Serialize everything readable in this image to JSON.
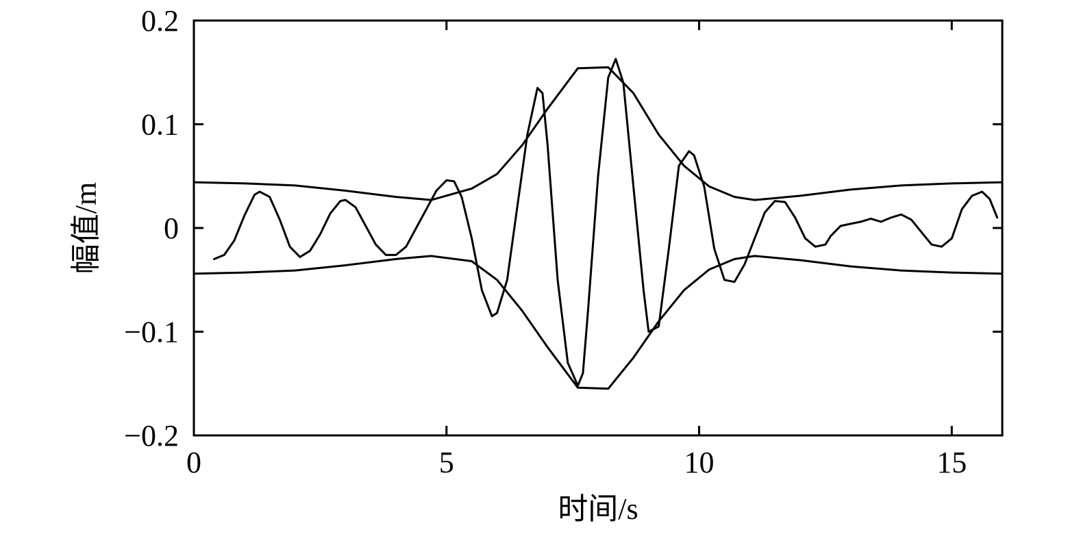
{
  "chart_data": {
    "type": "line",
    "title": "",
    "xlabel": "时间/s",
    "ylabel": "幅值/m",
    "xlim": [
      0,
      16
    ],
    "ylim": [
      -0.2,
      0.2
    ],
    "x_ticks": [
      0,
      5,
      10,
      15
    ],
    "x_tick_labels": [
      "0",
      "5",
      "10",
      "15"
    ],
    "y_ticks": [
      0.2,
      0.1,
      0,
      -0.1,
      -0.2
    ],
    "y_tick_labels": [
      "0.2",
      "0.1",
      "0",
      "−0.1",
      "−0.2"
    ],
    "grid": false,
    "legend": "none",
    "line_color": "#000000",
    "series": [
      {
        "x": [
          0.4,
          0.6,
          0.8,
          1.0,
          1.2,
          1.3,
          1.5,
          1.7,
          1.9,
          2.1,
          2.3,
          2.5,
          2.7,
          2.9,
          3.0,
          3.2,
          3.4,
          3.6,
          3.8,
          4.0,
          4.2,
          4.4,
          4.6,
          4.8,
          5.0,
          5.15,
          5.3,
          5.5,
          5.7,
          5.9,
          6.0,
          6.2,
          6.4,
          6.6,
          6.8,
          6.9,
          7.0,
          7.2,
          7.4,
          7.6,
          7.7,
          7.8,
          8.0,
          8.2,
          8.35,
          8.5,
          8.7,
          8.9,
          9.0,
          9.2,
          9.4,
          9.6,
          9.8,
          9.9,
          10.1,
          10.3,
          10.5,
          10.7,
          10.9,
          11.1,
          11.3,
          11.5,
          11.7,
          11.9,
          12.1,
          12.3,
          12.5,
          12.6,
          12.8,
          13.0,
          13.2,
          13.4,
          13.6,
          13.8,
          14.0,
          14.2,
          14.4,
          14.6,
          14.8,
          15.0,
          15.2,
          15.4,
          15.6,
          15.75,
          15.9
        ],
        "values": [
          -0.03,
          -0.026,
          -0.012,
          0.012,
          0.032,
          0.035,
          0.03,
          0.008,
          -0.018,
          -0.028,
          -0.022,
          -0.006,
          0.014,
          0.026,
          0.027,
          0.02,
          0.002,
          -0.016,
          -0.026,
          -0.026,
          -0.018,
          0.0,
          0.018,
          0.036,
          0.046,
          0.045,
          0.03,
          -0.01,
          -0.06,
          -0.085,
          -0.082,
          -0.05,
          0.02,
          0.09,
          0.135,
          0.13,
          0.08,
          -0.05,
          -0.13,
          -0.152,
          -0.14,
          -0.08,
          0.05,
          0.145,
          0.163,
          0.14,
          0.04,
          -0.06,
          -0.1,
          -0.095,
          -0.02,
          0.06,
          0.074,
          0.07,
          0.04,
          -0.02,
          -0.05,
          -0.052,
          -0.035,
          -0.01,
          0.015,
          0.026,
          0.025,
          0.01,
          -0.01,
          -0.018,
          -0.016,
          -0.008,
          0.002,
          0.004,
          0.006,
          0.009,
          0.006,
          0.01,
          0.013,
          0.008,
          -0.004,
          -0.016,
          -0.018,
          -0.01,
          0.018,
          0.031,
          0.035,
          0.028,
          0.01
        ]
      },
      {
        "x": [
          0,
          1,
          2,
          3,
          4,
          4.7,
          5.5,
          6.0,
          6.5,
          7.0,
          7.6,
          8.2,
          8.7,
          9.2,
          9.7,
          10.2,
          10.7,
          11.1,
          12,
          13,
          14,
          15,
          16
        ],
        "values": [
          0.044,
          0.043,
          0.041,
          0.036,
          0.03,
          0.027,
          0.038,
          0.052,
          0.08,
          0.115,
          0.154,
          0.155,
          0.13,
          0.09,
          0.06,
          0.04,
          0.03,
          0.027,
          0.031,
          0.037,
          0.041,
          0.043,
          0.044
        ]
      },
      {
        "x": [
          0,
          1,
          2,
          3,
          4,
          4.7,
          5.5,
          6.0,
          6.5,
          7.0,
          7.6,
          8.2,
          8.7,
          9.2,
          9.7,
          10.2,
          10.7,
          11.1,
          12,
          13,
          14,
          15,
          16
        ],
        "values": [
          -0.044,
          -0.043,
          -0.041,
          -0.036,
          -0.03,
          -0.027,
          -0.032,
          -0.05,
          -0.08,
          -0.115,
          -0.154,
          -0.155,
          -0.125,
          -0.09,
          -0.06,
          -0.04,
          -0.03,
          -0.027,
          -0.031,
          -0.037,
          -0.041,
          -0.043,
          -0.044
        ]
      }
    ]
  }
}
